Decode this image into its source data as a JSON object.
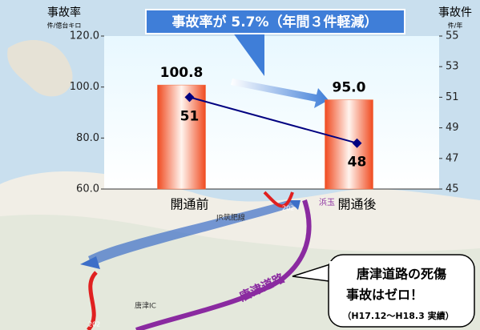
{
  "chart_data": {
    "type": "bar",
    "title": "事故率が 5.7%（年間３件軽減）",
    "y_label": "事故率",
    "y_unit": "件/億台キロ",
    "y2_label": "事故件",
    "y2_unit": "件/年",
    "categories": [
      "開通前",
      "開通後"
    ],
    "series": [
      {
        "type": "bar",
        "color": "#f26a3a",
        "values": [
          100.8,
          95
        ],
        "value_labels": [
          "100.8",
          "95.0"
        ]
      },
      {
        "type": "line",
        "color": "#000080",
        "axis": "y2",
        "values": [
          51,
          48
        ]
      }
    ],
    "ylim": [
      60,
      120
    ],
    "yticks": [
      {
        "value": 60,
        "label": "60.0"
      },
      {
        "value": 80,
        "label": "80.0"
      },
      {
        "value": 100,
        "label": "100.0"
      },
      {
        "value": 120,
        "label": "120.0"
      }
    ],
    "y2lim": [
      45,
      55
    ],
    "y2ticks": [
      45,
      47,
      49,
      51,
      53,
      55
    ],
    "annotations": [
      "唐津道路の死傷",
      "事故はゼロ！",
      "（H17.12～H18.3 実績）"
    ],
    "map_labels": [
      "JR筑肥線",
      "唐津IC",
      "浜玉",
      "唐津道路",
      "202",
      "202"
    ]
  }
}
